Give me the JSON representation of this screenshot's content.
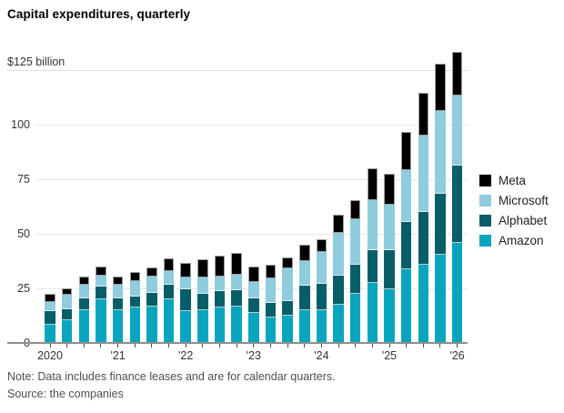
{
  "title": "Capital expenditures, quarterly",
  "note": "Note: Data includes finance leases and are for calendar quarters.",
  "source": "Source: the companies",
  "y_axis": {
    "top_label": "$125 billion",
    "ticks": [
      100,
      75,
      50,
      25,
      0
    ]
  },
  "x_axis": {
    "labels": [
      "2020",
      "'21",
      "'22",
      "'23",
      "'24",
      "'25",
      "'26"
    ]
  },
  "legend": [
    {
      "label": "Meta",
      "color": "#000000"
    },
    {
      "label": "Microsoft",
      "color": "#8fccdd"
    },
    {
      "label": "Alphabet",
      "color": "#075e69"
    },
    {
      "label": "Amazon",
      "color": "#09a5bf"
    }
  ],
  "chart_data": {
    "type": "bar",
    "stacked": true,
    "title": "Capital expenditures, quarterly",
    "unit": "$ billion",
    "ylim": [
      0,
      135
    ],
    "gridlines": [
      25,
      50,
      75,
      100,
      125
    ],
    "legend_position": "right",
    "x": [
      "2020 Q1",
      "2020 Q2",
      "2020 Q3",
      "2020 Q4",
      "2021 Q1",
      "2021 Q2",
      "2021 Q3",
      "2021 Q4",
      "2022 Q1",
      "2022 Q2",
      "2022 Q3",
      "2022 Q4",
      "2023 Q1",
      "2023 Q2",
      "2023 Q3",
      "2023 Q4",
      "2024 Q1",
      "2024 Q2",
      "2024 Q3",
      "2024 Q4",
      "2025 Q1",
      "2025 Q2",
      "2025 Q3",
      "2025 Q4",
      "2026 Q1"
    ],
    "series": [
      {
        "name": "Amazon",
        "color": "#09a5bf",
        "values": [
          8.5,
          10.4,
          15.0,
          19.9,
          15.0,
          16.1,
          16.7,
          20.1,
          14.6,
          15.0,
          16.4,
          16.6,
          13.6,
          11.8,
          12.5,
          14.9,
          14.9,
          17.7,
          22.7,
          27.4,
          24.6,
          33.6,
          35.8,
          40.6,
          45.8
        ]
      },
      {
        "name": "Alphabet",
        "color": "#075e69",
        "values": [
          6.2,
          5.0,
          5.4,
          5.8,
          5.6,
          5.1,
          6.4,
          6.7,
          9.8,
          7.3,
          7.3,
          7.5,
          6.8,
          6.6,
          6.7,
          11.5,
          12.2,
          13.3,
          13.0,
          15.0,
          17.8,
          22.0,
          24.2,
          27.7,
          35.4
        ]
      },
      {
        "name": "Microsoft",
        "color": "#8fccdd",
        "values": [
          4.1,
          6.6,
          6.3,
          5.3,
          6.1,
          7.0,
          7.2,
          6.0,
          5.8,
          7.8,
          6.6,
          7.2,
          7.4,
          11.3,
          14.8,
          11.2,
          14.6,
          19.4,
          20.8,
          22.9,
          21.1,
          23.6,
          34.9,
          38.0,
          32.3
        ]
      },
      {
        "name": "Meta",
        "color": "#000000",
        "values": [
          3.6,
          3.0,
          3.6,
          4.0,
          3.9,
          4.4,
          4.4,
          5.8,
          6.3,
          8.4,
          9.7,
          9.9,
          7.4,
          6.3,
          5.1,
          7.6,
          5.8,
          8.4,
          9.1,
          14.9,
          14.0,
          17.6,
          19.7,
          21.5,
          19.7
        ]
      }
    ]
  }
}
